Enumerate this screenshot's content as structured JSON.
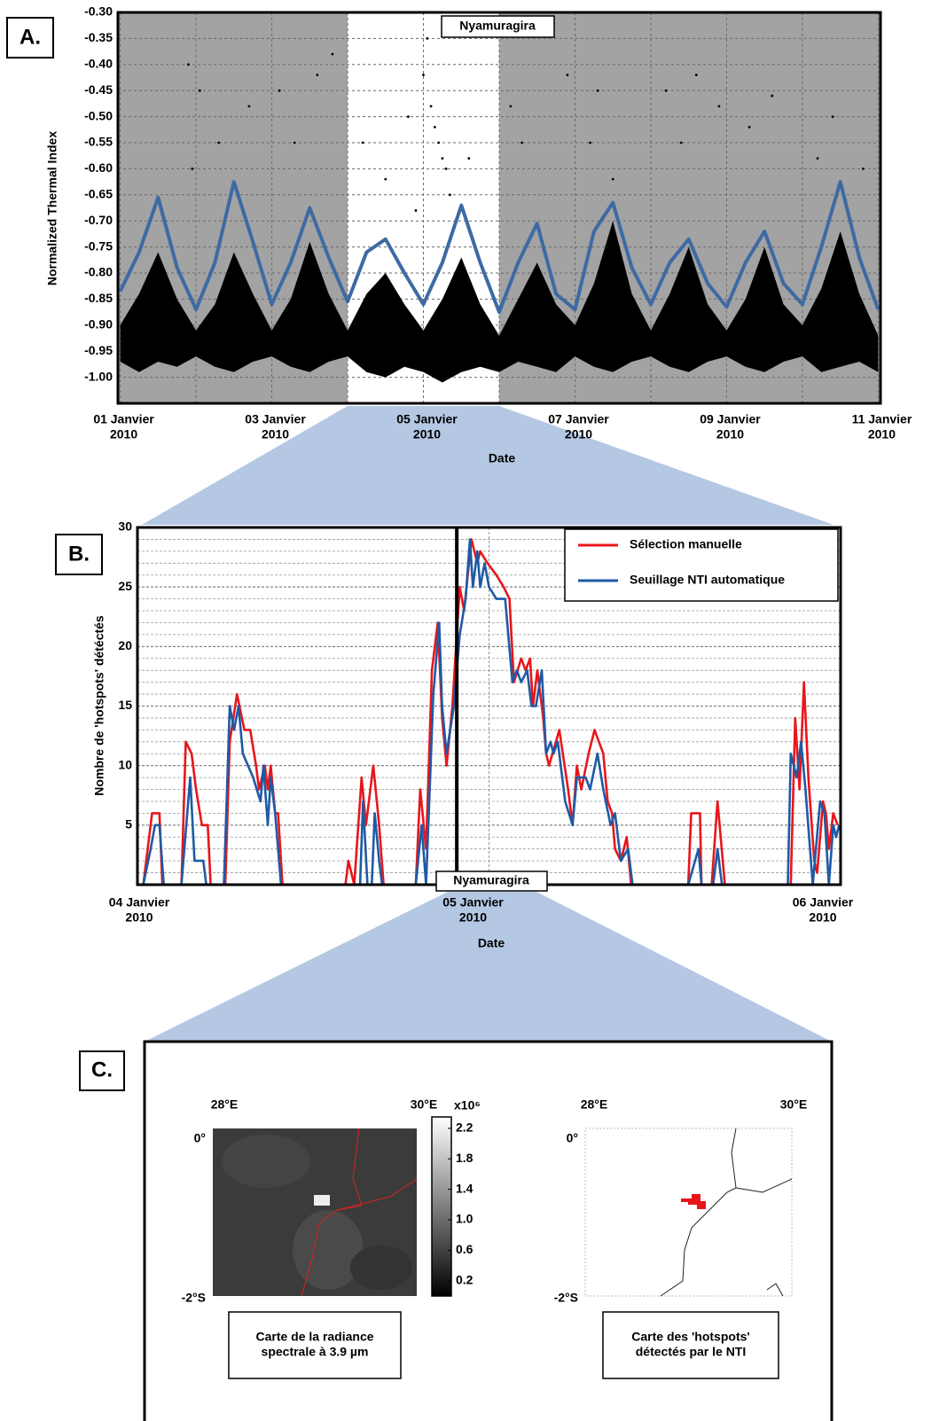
{
  "chart_data": [
    {
      "type": "scatter",
      "panel_label": "A.",
      "y_label": "Normalized Thermal Index",
      "x_label": "Date",
      "highlight": {
        "from": 3,
        "to": 5,
        "label": "Nyamuragira"
      },
      "xlim": [
        -0.03,
        10.03
      ],
      "ylim": [
        -1.05,
        -0.3
      ],
      "xticks": [
        {
          "value": 0,
          "label": "01 Janvier\n2010"
        },
        {
          "value": 2,
          "label": "03 Janvier\n2010"
        },
        {
          "value": 4,
          "label": "05 Janvier\n2010"
        },
        {
          "value": 6,
          "label": "07 Janvier\n2010"
        },
        {
          "value": 8,
          "label": "09 Janvier\n2010"
        },
        {
          "value": 10,
          "label": "11 Janvier\n2010"
        }
      ],
      "xminor": [
        1,
        3,
        5,
        7,
        9
      ],
      "yticks": [
        {
          "value": -1.0,
          "label": "-1.00"
        },
        {
          "value": -0.95,
          "label": "-0.95"
        },
        {
          "value": -0.9,
          "label": "-0.90"
        },
        {
          "value": -0.85,
          "label": "-0.85"
        },
        {
          "value": -0.8,
          "label": "-0.80"
        },
        {
          "value": -0.75,
          "label": "-0.75"
        },
        {
          "value": -0.7,
          "label": "-0.70"
        },
        {
          "value": -0.65,
          "label": "-0.65"
        },
        {
          "value": -0.6,
          "label": "-0.60"
        },
        {
          "value": -0.55,
          "label": "-0.55"
        },
        {
          "value": -0.5,
          "label": "-0.50"
        },
        {
          "value": -0.45,
          "label": "-0.45"
        },
        {
          "value": -0.4,
          "label": "-0.40"
        },
        {
          "value": -0.35,
          "label": "-0.35"
        },
        {
          "value": -0.3,
          "label": "-0.30"
        }
      ],
      "grid": true,
      "x": [
        0,
        0.25,
        0.5,
        0.75,
        1,
        1.25,
        1.5,
        1.75,
        2,
        2.25,
        2.5,
        2.75,
        3,
        3.25,
        3.5,
        3.75,
        4,
        4.25,
        4.5,
        4.75,
        5,
        5.25,
        5.5,
        5.75,
        6,
        6.25,
        6.5,
        6.75,
        7,
        7.25,
        7.5,
        7.75,
        8,
        8.25,
        8.5,
        8.75,
        9,
        9.25,
        9.5,
        9.75,
        10
      ],
      "band": {
        "color": "#000000",
        "upper": [
          -0.9,
          -0.84,
          -0.76,
          -0.85,
          -0.91,
          -0.86,
          -0.76,
          -0.84,
          -0.91,
          -0.85,
          -0.74,
          -0.84,
          -0.91,
          -0.84,
          -0.8,
          -0.86,
          -0.91,
          -0.85,
          -0.77,
          -0.86,
          -0.92,
          -0.85,
          -0.78,
          -0.86,
          -0.9,
          -0.82,
          -0.7,
          -0.84,
          -0.91,
          -0.84,
          -0.75,
          -0.86,
          -0.91,
          -0.85,
          -0.75,
          -0.86,
          -0.9,
          -0.83,
          -0.72,
          -0.84,
          -0.92
        ],
        "lower": [
          -0.97,
          -0.99,
          -0.97,
          -0.98,
          -0.96,
          -0.98,
          -0.99,
          -0.97,
          -0.96,
          -0.98,
          -0.99,
          -0.97,
          -0.96,
          -0.99,
          -1.0,
          -0.98,
          -0.99,
          -1.01,
          -0.99,
          -0.98,
          -0.99,
          -0.97,
          -0.98,
          -0.99,
          -0.96,
          -0.98,
          -0.99,
          -0.97,
          -0.96,
          -0.98,
          -0.99,
          -0.97,
          -0.96,
          -0.98,
          -0.99,
          -0.97,
          -0.96,
          -0.99,
          -0.98,
          -0.97,
          -0.99
        ]
      },
      "points": {
        "color": "#000000",
        "x": [
          0.9,
          0.95,
          1.05,
          1.3,
          1.7,
          2.1,
          2.3,
          2.6,
          2.8,
          3.2,
          3.5,
          3.8,
          3.9,
          4.0,
          4.05,
          4.1,
          4.15,
          4.2,
          4.25,
          4.3,
          4.35,
          4.6,
          5.15,
          5.3,
          5.9,
          6.2,
          6.3,
          6.5,
          7.2,
          7.4,
          7.6,
          7.9,
          8.3,
          8.6,
          9.2,
          9.4,
          9.8
        ],
        "y": [
          -0.4,
          -0.6,
          -0.45,
          -0.55,
          -0.48,
          -0.45,
          -0.55,
          -0.42,
          -0.38,
          -0.55,
          -0.62,
          -0.5,
          -0.68,
          -0.42,
          -0.35,
          -0.48,
          -0.52,
          -0.55,
          -0.58,
          -0.6,
          -0.65,
          -0.58,
          -0.48,
          -0.55,
          -0.42,
          -0.55,
          -0.45,
          -0.62,
          -0.45,
          -0.55,
          -0.42,
          -0.48,
          -0.52,
          -0.46,
          -0.58,
          -0.5,
          -0.6
        ]
      },
      "series": [
        {
          "color": "#3e6aa3",
          "values": [
            -0.835,
            -0.76,
            -0.655,
            -0.79,
            -0.87,
            -0.78,
            -0.625,
            -0.74,
            -0.86,
            -0.78,
            -0.675,
            -0.77,
            -0.855,
            -0.76,
            -0.735,
            -0.8,
            -0.86,
            -0.78,
            -0.67,
            -0.78,
            -0.875,
            -0.78,
            -0.705,
            -0.84,
            -0.87,
            -0.72,
            -0.665,
            -0.79,
            -0.86,
            -0.78,
            -0.735,
            -0.82,
            -0.865,
            -0.78,
            -0.72,
            -0.82,
            -0.86,
            -0.75,
            -0.625,
            -0.77,
            -0.87
          ]
        }
      ]
    },
    {
      "type": "line",
      "panel_label": "B.",
      "y_label": "Nombre de 'hotspots' détéctés",
      "x_label": "Date",
      "marker": {
        "value": 21.8,
        "label": "Nyamuragira"
      },
      "xlim": [
        0,
        48
      ],
      "ylim": [
        0,
        30
      ],
      "xticks": [
        {
          "value": 0,
          "label": "04 Janvier\n2010"
        },
        {
          "value": 24,
          "label": "05 Janvier\n2010"
        },
        {
          "value": 48,
          "label": "06 Janvier\n2010"
        }
      ],
      "yticks": [
        5,
        10,
        15,
        20,
        25,
        30
      ],
      "grid": true,
      "minor_grid": true,
      "legend": "top-right",
      "series": [
        {
          "name": "Sélection manuelle",
          "color": "#e8161b",
          "x": [
            0.4,
            1.0,
            1.5,
            1.7,
            3.0,
            3.3,
            3.7,
            4.0,
            4.4,
            4.8,
            5.0,
            6.0,
            6.3,
            6.8,
            7.3,
            7.7,
            8.1,
            8.3,
            8.7,
            8.9,
            9.1,
            9.4,
            9.6,
            9.9,
            14.2,
            14.4,
            14.8,
            15.3,
            15.6,
            16.1,
            16.5,
            16.8,
            19.0,
            19.3,
            19.7,
            20.1,
            20.5,
            20.8,
            21.1,
            21.5,
            22.0,
            22.3,
            22.8,
            23.2,
            23.4,
            23.9,
            24.5,
            25.0,
            25.4,
            25.7,
            26.2,
            26.5,
            26.8,
            27.0,
            27.3,
            27.7,
            27.9,
            28.1,
            28.8,
            29.4,
            29.7,
            30.0,
            30.3,
            30.8,
            31.2,
            31.8,
            32.1,
            32.4,
            32.6,
            33.0,
            33.4,
            33.7,
            37.6,
            37.8,
            38.4,
            38.5,
            39.2,
            39.6,
            40.1,
            44.6,
            44.9,
            45.2,
            45.5,
            45.8,
            46.2,
            46.4,
            46.8,
            47.0,
            47.2,
            47.5,
            47.8
          ],
          "values": [
            0,
            6,
            6,
            0,
            0,
            12,
            11,
            8,
            5,
            5,
            0,
            0,
            12,
            16,
            13,
            13,
            10,
            8,
            10,
            8,
            10,
            6,
            6,
            0,
            0,
            2,
            0,
            9,
            5,
            10,
            5,
            0,
            0,
            8,
            3,
            18,
            22,
            14,
            10,
            15,
            25,
            23,
            29,
            27,
            28,
            27,
            26,
            25,
            24,
            17,
            19,
            18,
            19,
            15,
            18,
            14,
            11,
            10,
            13,
            8,
            5,
            10,
            8,
            11,
            13,
            11,
            7,
            6,
            3,
            2,
            4,
            0,
            0,
            6,
            6,
            0,
            0,
            7,
            0,
            0,
            14,
            8,
            17,
            9,
            2,
            1,
            7,
            6,
            3,
            6,
            5
          ]
        },
        {
          "name": "Seuillage NTI automatique",
          "color": "#1f5aa6",
          "x": [
            0.4,
            0.9,
            1.2,
            1.5,
            1.8,
            3.0,
            3.4,
            3.6,
            3.9,
            4.5,
            4.7,
            5.9,
            6.3,
            6.6,
            6.9,
            7.2,
            7.9,
            8.4,
            8.6,
            8.9,
            9.1,
            9.4,
            9.8,
            15.2,
            15.4,
            15.7,
            16.0,
            16.2,
            16.5,
            16.7,
            19.0,
            19.4,
            19.7,
            20.2,
            20.6,
            20.8,
            21.1,
            21.6,
            22.0,
            22.4,
            22.7,
            22.9,
            23.2,
            23.4,
            23.7,
            24.0,
            24.5,
            25.1,
            25.6,
            25.9,
            26.2,
            26.6,
            26.9,
            27.2,
            27.6,
            27.9,
            28.2,
            28.4,
            28.7,
            29.2,
            29.7,
            30.0,
            30.6,
            30.9,
            31.4,
            31.8,
            32.3,
            32.6,
            33.0,
            33.5,
            33.8,
            37.6,
            38.3,
            38.5,
            39.3,
            39.6,
            39.9,
            44.4,
            44.6,
            45.0,
            45.3,
            45.6,
            46.1,
            46.6,
            46.9,
            47.2,
            47.5,
            47.7,
            47.9
          ],
          "values": [
            0,
            3,
            5,
            5,
            0,
            0,
            6,
            9,
            2,
            2,
            0,
            0,
            15,
            13,
            15,
            11,
            9,
            7,
            10,
            5,
            9,
            6,
            0,
            0,
            7,
            0,
            0,
            6,
            2,
            0,
            0,
            5,
            0,
            16,
            22,
            15,
            11,
            15,
            21,
            24,
            29,
            25,
            28,
            25,
            27,
            25,
            24,
            24,
            17,
            18,
            17,
            18,
            15,
            15,
            18,
            11,
            12,
            11,
            12,
            7,
            5,
            9,
            9,
            8,
            11,
            8,
            5,
            6,
            2,
            3,
            0,
            0,
            3,
            0,
            0,
            3,
            0,
            0,
            11,
            9,
            12,
            8,
            0,
            7,
            6,
            0,
            5,
            4,
            5
          ]
        }
      ]
    }
  ],
  "panel_c": {
    "label": "C.",
    "maps": [
      {
        "lon_labels": [
          "28°E",
          "30°E"
        ],
        "lat_labels": [
          "0°",
          "-2°S"
        ],
        "caption": "Carte de la radiance\nspectrale à 3.9 µm"
      },
      {
        "lon_labels": [
          "28°E",
          "30°E"
        ],
        "lat_labels": [
          "0°",
          "-2°S"
        ],
        "caption": "Carte des 'hotspots'\ndétectés par le NTI"
      }
    ],
    "colorbar": {
      "unit": "x10⁶",
      "clim": [
        0,
        2.35
      ],
      "ticks": [
        2.2,
        1.8,
        1.4,
        {
          "value": 1.0,
          "label": "1.0"
        },
        0.6,
        0.2
      ]
    }
  }
}
